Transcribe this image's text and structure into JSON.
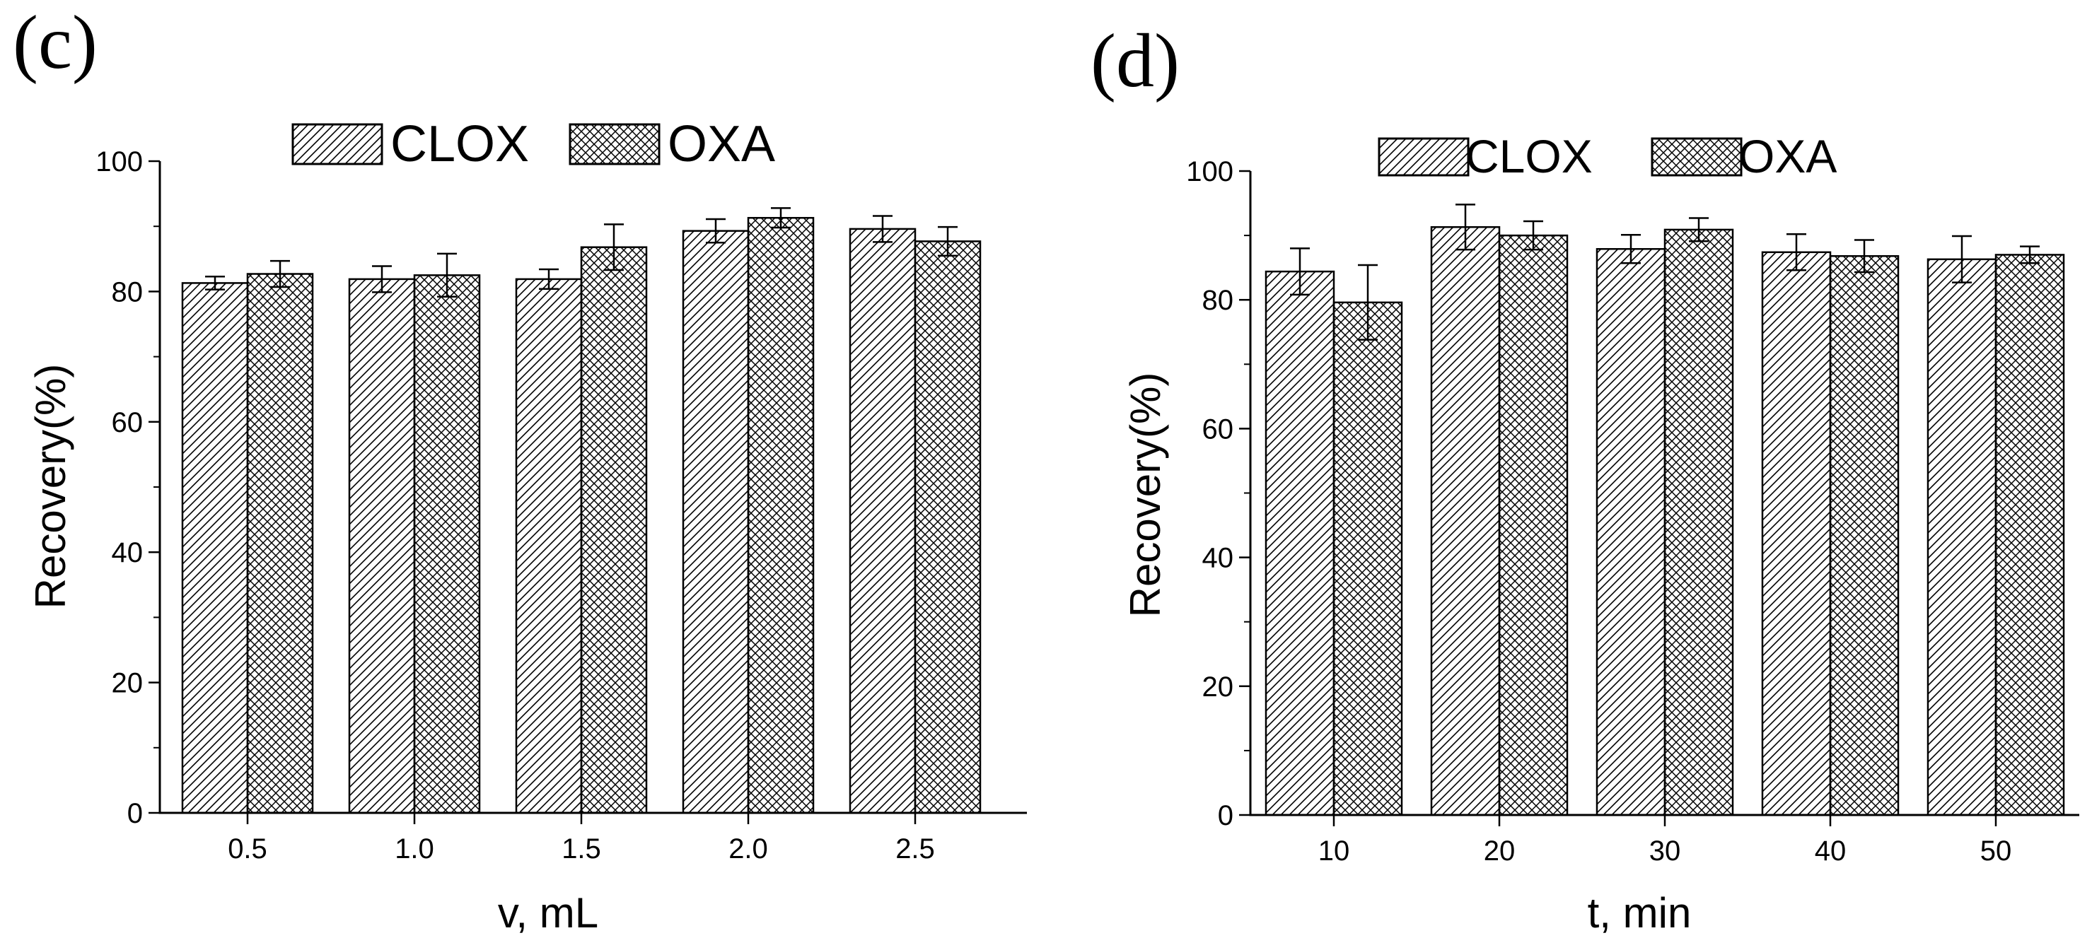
{
  "colors": {
    "background": "#ffffff",
    "ink": "#000000"
  },
  "chart_data": [
    {
      "type": "bar",
      "panel_label": "(c)",
      "title": "",
      "xlabel": "v, mL",
      "ylabel": "Recovery(%)",
      "categories": [
        "0.5",
        "1.0",
        "1.5",
        "2.0",
        "2.5"
      ],
      "series": [
        {
          "name": "CLOX",
          "pattern": "diagonal-hatch",
          "values": [
            81.3,
            81.9,
            81.9,
            89.3,
            89.6
          ],
          "errors": [
            1.0,
            2.0,
            1.5,
            1.8,
            2.0
          ]
        },
        {
          "name": "OXA",
          "pattern": "crosshatch",
          "values": [
            82.7,
            82.5,
            86.8,
            91.3,
            87.7
          ],
          "errors": [
            2.0,
            3.3,
            3.5,
            1.5,
            2.2
          ]
        }
      ],
      "ylim": [
        0,
        100
      ],
      "yticks": [
        "0",
        "20",
        "40",
        "60",
        "80",
        "100"
      ],
      "legend_position": "top-center",
      "grid": false
    },
    {
      "type": "bar",
      "panel_label": "(d)",
      "title": "",
      "xlabel": "t, min",
      "ylabel": "Recovery(%)",
      "categories": [
        "10",
        "20",
        "30",
        "40",
        "50"
      ],
      "series": [
        {
          "name": "CLOX",
          "pattern": "diagonal-hatch",
          "values": [
            84.4,
            91.3,
            87.9,
            87.4,
            86.3
          ],
          "errors": [
            3.6,
            3.5,
            2.2,
            2.8,
            3.6
          ]
        },
        {
          "name": "OXA",
          "pattern": "crosshatch",
          "values": [
            79.6,
            90.0,
            90.9,
            86.8,
            87.0
          ],
          "errors": [
            5.8,
            2.2,
            1.8,
            2.5,
            1.3
          ]
        }
      ],
      "ylim": [
        0,
        100
      ],
      "yticks": [
        "0",
        "20",
        "40",
        "60",
        "80",
        "100"
      ],
      "legend_position": "top-center",
      "grid": false
    }
  ]
}
